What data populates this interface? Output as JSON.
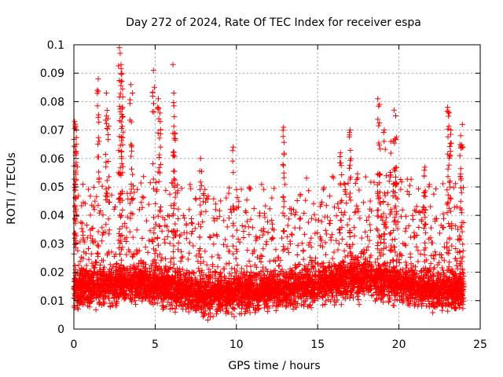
{
  "chart_data": {
    "type": "scatter",
    "title": "Day 272 of 2024, Rate Of TEC Index for receiver espa",
    "xlabel": "GPS time / hours",
    "ylabel": "ROTI / TECUs",
    "xlim": [
      0,
      25
    ],
    "ylim": [
      0,
      0.1
    ],
    "xticks": [
      0,
      5,
      10,
      15,
      20,
      25
    ],
    "xtick_labels": [
      "0",
      "5",
      "10",
      "15",
      "20",
      "25"
    ],
    "yticks": [
      0,
      0.01,
      0.02,
      0.03,
      0.04,
      0.05,
      0.06,
      0.07,
      0.08,
      0.09,
      0.1
    ],
    "ytick_labels": [
      "0",
      "0.01",
      "0.02",
      "0.03",
      "0.04",
      "0.05",
      "0.06",
      "0.07",
      "0.08",
      "0.09",
      "0.1"
    ],
    "grid": true,
    "marker": "plus",
    "marker_color": "#ff0000",
    "series": [
      {
        "name": "ROTI",
        "baseline": [
          {
            "hour": 0,
            "center": 0.014
          },
          {
            "hour": 2,
            "center": 0.015
          },
          {
            "hour": 4,
            "center": 0.016
          },
          {
            "hour": 6,
            "center": 0.014
          },
          {
            "hour": 8,
            "center": 0.012
          },
          {
            "hour": 10,
            "center": 0.013
          },
          {
            "hour": 12,
            "center": 0.013
          },
          {
            "hour": 14,
            "center": 0.015
          },
          {
            "hour": 16,
            "center": 0.017
          },
          {
            "hour": 18,
            "center": 0.018
          },
          {
            "hour": 20,
            "center": 0.016
          },
          {
            "hour": 22,
            "center": 0.014
          },
          {
            "hour": 24,
            "center": 0.013
          }
        ],
        "spread": 0.006,
        "x_range": [
          0,
          24
        ],
        "count": 4200,
        "peaks": [
          {
            "x": 0.05,
            "y": 0.073
          },
          {
            "x": 0.1,
            "y": 0.071
          },
          {
            "x": 0.15,
            "y": 0.07
          },
          {
            "x": 1.5,
            "y": 0.088
          },
          {
            "x": 2.0,
            "y": 0.083
          },
          {
            "x": 2.1,
            "y": 0.074
          },
          {
            "x": 2.8,
            "y": 0.099
          },
          {
            "x": 2.85,
            "y": 0.097
          },
          {
            "x": 2.9,
            "y": 0.093
          },
          {
            "x": 2.95,
            "y": 0.09
          },
          {
            "x": 3.0,
            "y": 0.078
          },
          {
            "x": 3.5,
            "y": 0.086
          },
          {
            "x": 3.6,
            "y": 0.083
          },
          {
            "x": 4.9,
            "y": 0.091
          },
          {
            "x": 5.2,
            "y": 0.081
          },
          {
            "x": 5.3,
            "y": 0.076
          },
          {
            "x": 6.1,
            "y": 0.093
          },
          {
            "x": 6.15,
            "y": 0.083
          },
          {
            "x": 6.2,
            "y": 0.069
          },
          {
            "x": 7.8,
            "y": 0.06
          },
          {
            "x": 9.8,
            "y": 0.064
          },
          {
            "x": 12.9,
            "y": 0.071
          },
          {
            "x": 16.4,
            "y": 0.062
          },
          {
            "x": 17.0,
            "y": 0.07
          },
          {
            "x": 18.7,
            "y": 0.081
          },
          {
            "x": 18.8,
            "y": 0.079
          },
          {
            "x": 19.1,
            "y": 0.07
          },
          {
            "x": 19.5,
            "y": 0.066
          },
          {
            "x": 19.7,
            "y": 0.077
          },
          {
            "x": 19.8,
            "y": 0.075
          },
          {
            "x": 21.6,
            "y": 0.057
          },
          {
            "x": 23.0,
            "y": 0.078
          },
          {
            "x": 23.1,
            "y": 0.076
          },
          {
            "x": 23.2,
            "y": 0.07
          },
          {
            "x": 23.9,
            "y": 0.072
          },
          {
            "x": 23.8,
            "y": 0.068
          }
        ]
      }
    ]
  }
}
